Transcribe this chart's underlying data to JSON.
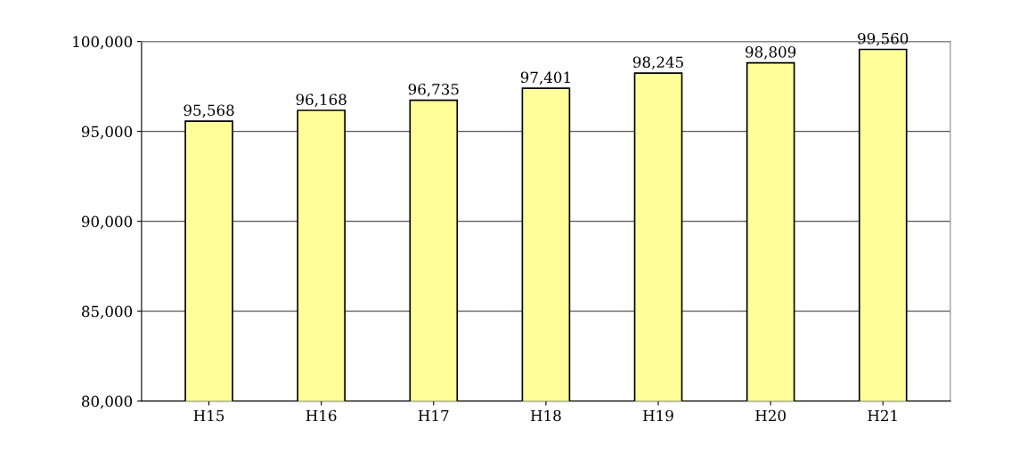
{
  "chart_data": {
    "type": "bar",
    "categories": [
      "H15",
      "H16",
      "H17",
      "H18",
      "H19",
      "H20",
      "H21"
    ],
    "values": [
      95568,
      96168,
      96735,
      97401,
      98245,
      98809,
      99560
    ],
    "color": "#ffff99",
    "ylim": [
      80000,
      100000
    ],
    "yticks": [
      {
        "value": 80000,
        "label": "80,000"
      },
      {
        "value": 85000,
        "label": "85,000"
      },
      {
        "value": 90000,
        "label": "90,000"
      },
      {
        "value": 95000,
        "label": "95,000"
      },
      {
        "value": 100000,
        "label": "100,000"
      }
    ],
    "value_labels": [
      "95,568",
      "96,168",
      "96,735",
      "97,401",
      "98,245",
      "98,809",
      "99,560"
    ],
    "grid": "y",
    "legend": false
  }
}
